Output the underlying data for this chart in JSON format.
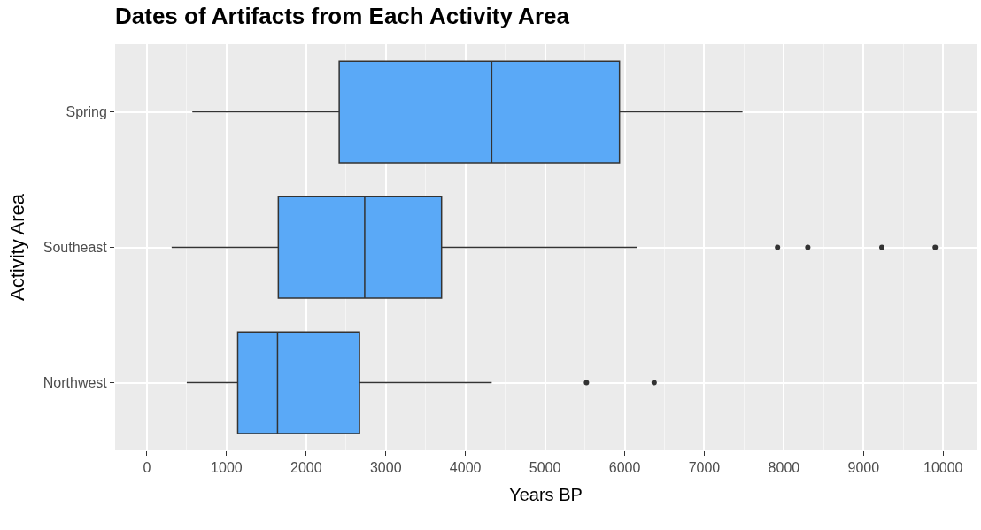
{
  "chart_data": {
    "type": "box",
    "orientation": "horizontal",
    "title": "Dates of Artifacts from Each Activity Area",
    "xlabel": "Years BP",
    "ylabel": "Activity Area",
    "categories": [
      "Spring",
      "Southeast",
      "Northwest"
    ],
    "boxes": [
      {
        "low": 570,
        "q1": 2415,
        "median": 4330,
        "q3": 5935,
        "high": 7480
      },
      {
        "low": 310,
        "q1": 1650,
        "median": 2735,
        "q3": 3700,
        "high": 6150,
        "outliers": [
          7920,
          8300,
          9230,
          9900
        ]
      },
      {
        "low": 500,
        "q1": 1140,
        "median": 1640,
        "q3": 2670,
        "high": 4330,
        "outliers": [
          5520,
          6370
        ]
      }
    ],
    "color": "#5aa9f7",
    "xlim": [
      -400,
      10420
    ],
    "xticks": [
      0,
      1000,
      2000,
      3000,
      4000,
      5000,
      6000,
      7000,
      8000,
      9000,
      10000
    ],
    "grid": true
  }
}
